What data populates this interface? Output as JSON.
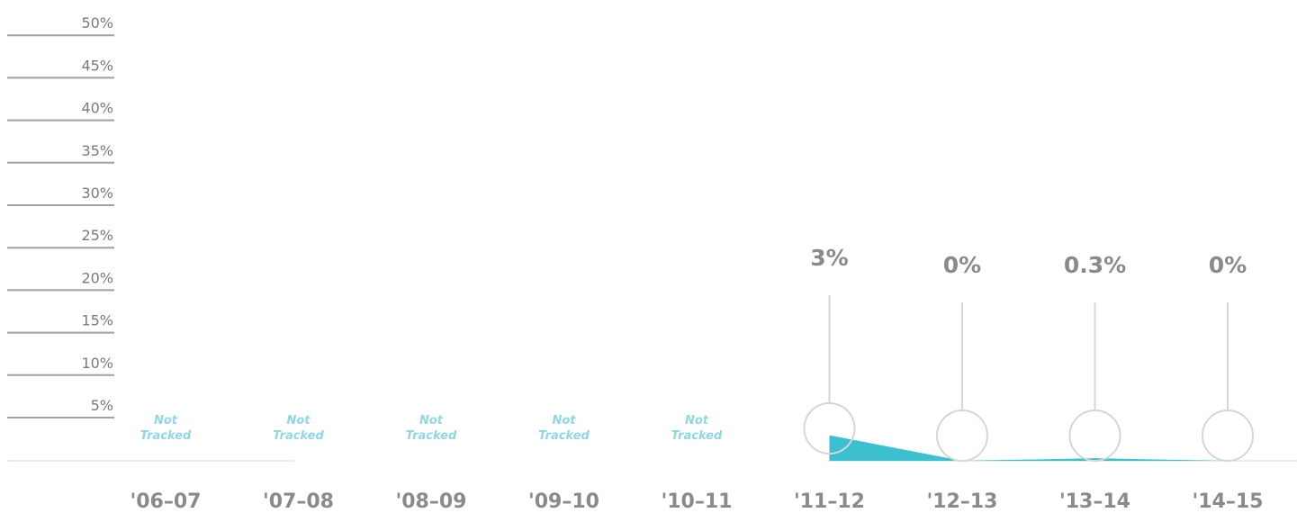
{
  "chart_data": {
    "type": "area",
    "categories": [
      "'06–07",
      "'07–08",
      "'08–09",
      "'09–10",
      "'10–11",
      "'11–12",
      "'12–13",
      "'13–14",
      "'14–15"
    ],
    "values": [
      null,
      null,
      null,
      null,
      null,
      3,
      0,
      0.3,
      0
    ],
    "data_labels": [
      "",
      "",
      "",
      "",
      "",
      "3%",
      "0%",
      "0.3%",
      "0%"
    ],
    "not_tracked_label": [
      "Not",
      "Tracked"
    ],
    "y_ticks": [
      "5%",
      "10%",
      "15%",
      "20%",
      "25%",
      "30%",
      "35%",
      "40%",
      "45%",
      "50%"
    ],
    "ylim": [
      0,
      50
    ],
    "grid": false,
    "colors": {
      "area": "#3cc0cf",
      "not_tracked": "#8fd8e3",
      "baseline": "#d6efef",
      "markers": "#d6d6d6",
      "ticks": "#a0a0a0",
      "labels": "#8a8a8a"
    }
  }
}
